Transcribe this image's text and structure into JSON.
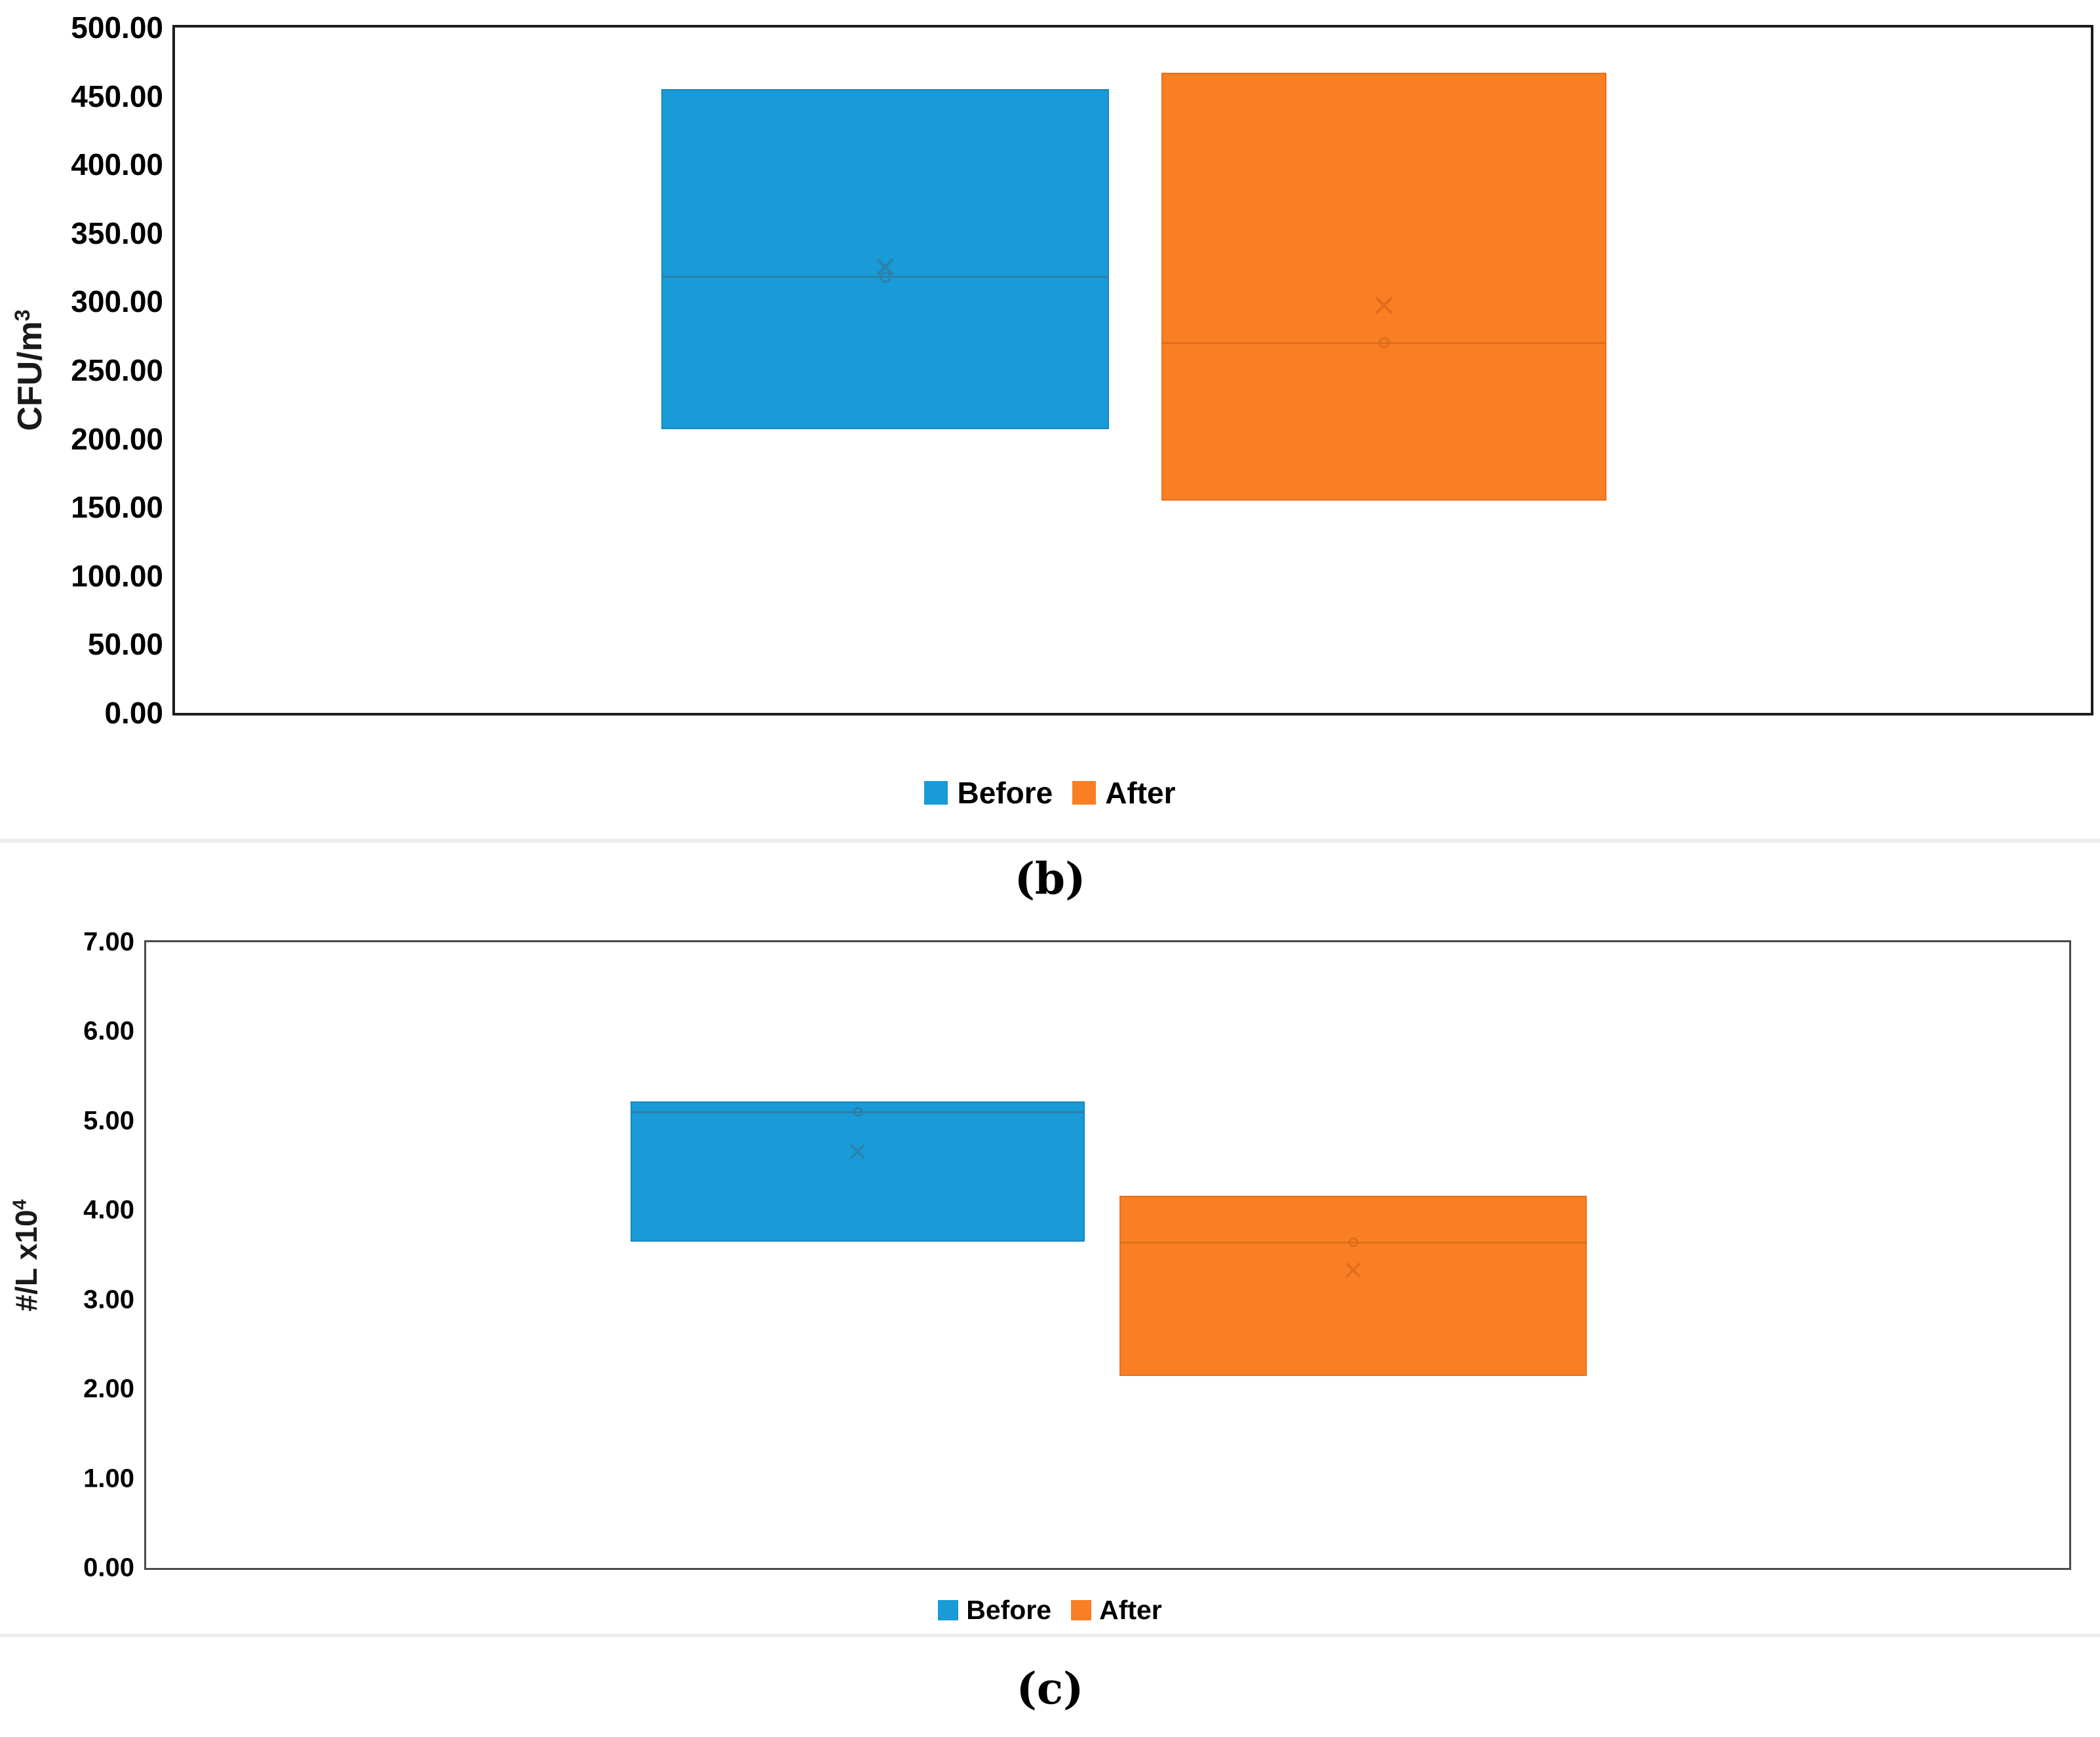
{
  "figure": {
    "captions": {
      "b": "(b)",
      "c": "(c)"
    }
  },
  "chart_data": [
    {
      "id": "b",
      "type": "box",
      "panel_label": "(b)",
      "ylabel": "CFU/m³",
      "y_axis": {
        "title_base": "CFU/m",
        "title_sup": "3",
        "tick_values": [
          500,
          450,
          400,
          350,
          300,
          250,
          200,
          150,
          100,
          50,
          0
        ],
        "tick_labels": [
          "500.00",
          "450.00",
          "400.00",
          "350.00",
          "300.00",
          "250.00",
          "200.00",
          "150.00",
          "100.00",
          "50.00",
          "0.00"
        ]
      },
      "ylim": [
        0,
        500
      ],
      "grid": false,
      "categories": [
        "Before",
        "After"
      ],
      "legend": {
        "position": "bottom-center",
        "items": [
          {
            "label": "Before",
            "color": "#189BD7"
          },
          {
            "label": "After",
            "color": "#FA7E23"
          }
        ]
      },
      "series": [
        {
          "name": "Before",
          "color": "#189BD7",
          "edge": "#1887C4",
          "accent": "#2E7CA3",
          "q1": 207,
          "median": 318,
          "mean": 325,
          "q3": 455
        },
        {
          "name": "After",
          "color": "#FA7E23",
          "edge": "#E8701A",
          "accent": "#D96B1C",
          "q1": 155,
          "median": 270,
          "mean": 297,
          "q3": 467
        }
      ]
    },
    {
      "id": "c",
      "type": "box",
      "panel_label": "(c)",
      "ylabel": "#/L x10⁴",
      "y_axis": {
        "title_base": "#/L x10",
        "title_sup": "4",
        "tick_values": [
          7,
          6,
          5,
          4,
          3,
          2,
          1,
          0
        ],
        "tick_labels": [
          "7.00",
          "6.00",
          "5.00",
          "4.00",
          "3.00",
          "2.00",
          "1.00",
          "0.00"
        ]
      },
      "ylim": [
        0,
        7
      ],
      "grid": false,
      "categories": [
        "Before",
        "After"
      ],
      "legend": {
        "position": "bottom-center",
        "items": [
          {
            "label": "Before",
            "color": "#189BD7"
          },
          {
            "label": "After",
            "color": "#FA7E23"
          }
        ]
      },
      "series": [
        {
          "name": "Before",
          "color": "#189BD7",
          "edge": "#1887C4",
          "accent": "#2E7CA3",
          "q1": 3.65,
          "median": 5.1,
          "mean": 4.65,
          "q3": 5.22
        },
        {
          "name": "After",
          "color": "#FA7E23",
          "edge": "#E8701A",
          "accent": "#D96B1C",
          "q1": 2.15,
          "median": 3.64,
          "mean": 3.32,
          "q3": 4.16
        }
      ]
    }
  ]
}
